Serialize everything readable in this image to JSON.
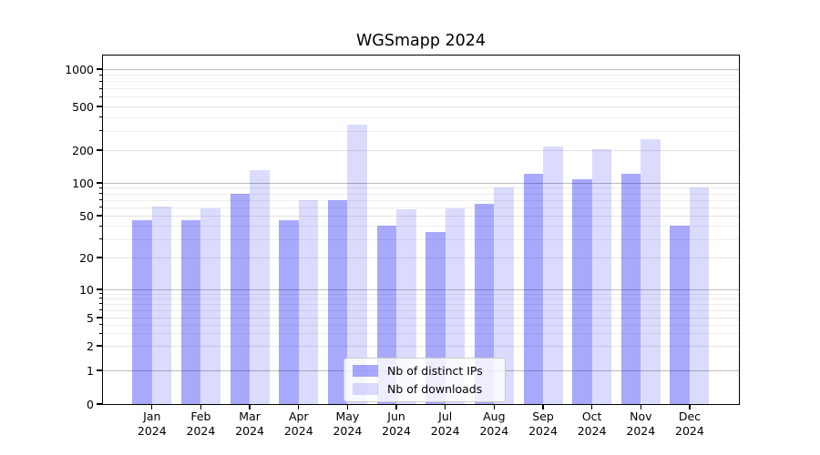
{
  "title": "WGSmapp 2024",
  "legend": {
    "items": [
      {
        "label": "Nb of distinct IPs",
        "color": "rgba(10,10,245,0.35)"
      },
      {
        "label": "Nb of downloads",
        "color": "rgba(10,10,245,0.145)"
      }
    ]
  },
  "chart_data": {
    "type": "bar",
    "title": "WGSmapp 2024",
    "categories": [
      "Jan 2024",
      "Feb 2024",
      "Mar 2024",
      "Apr 2024",
      "May 2024",
      "Jun 2024",
      "Jul 2024",
      "Aug 2024",
      "Sep 2024",
      "Oct 2024",
      "Nov 2024",
      "Dec 2024"
    ],
    "x_tick_months": [
      "Jan",
      "Feb",
      "Mar",
      "Apr",
      "May",
      "Jun",
      "Jul",
      "Aug",
      "Sep",
      "Oct",
      "Nov",
      "Dec"
    ],
    "x_tick_year": "2024",
    "series": [
      {
        "name": "Nb of distinct IPs",
        "color": "rgba(10,10,245,0.35)",
        "values": [
          45,
          45,
          79,
          45,
          70,
          40,
          35,
          64,
          122,
          108,
          122,
          40
        ]
      },
      {
        "name": "Nb of downloads",
        "color": "rgba(10,10,245,0.145)",
        "values": [
          61,
          58,
          130,
          70,
          340,
          57,
          58,
          90,
          215,
          205,
          250,
          90
        ]
      }
    ],
    "yscale": "symlog",
    "y_ticks": [
      0,
      1,
      2,
      5,
      10,
      20,
      50,
      100,
      200,
      500,
      1000
    ],
    "ylim": [
      0,
      1300
    ],
    "grid": true,
    "legend_position": "lower center"
  }
}
